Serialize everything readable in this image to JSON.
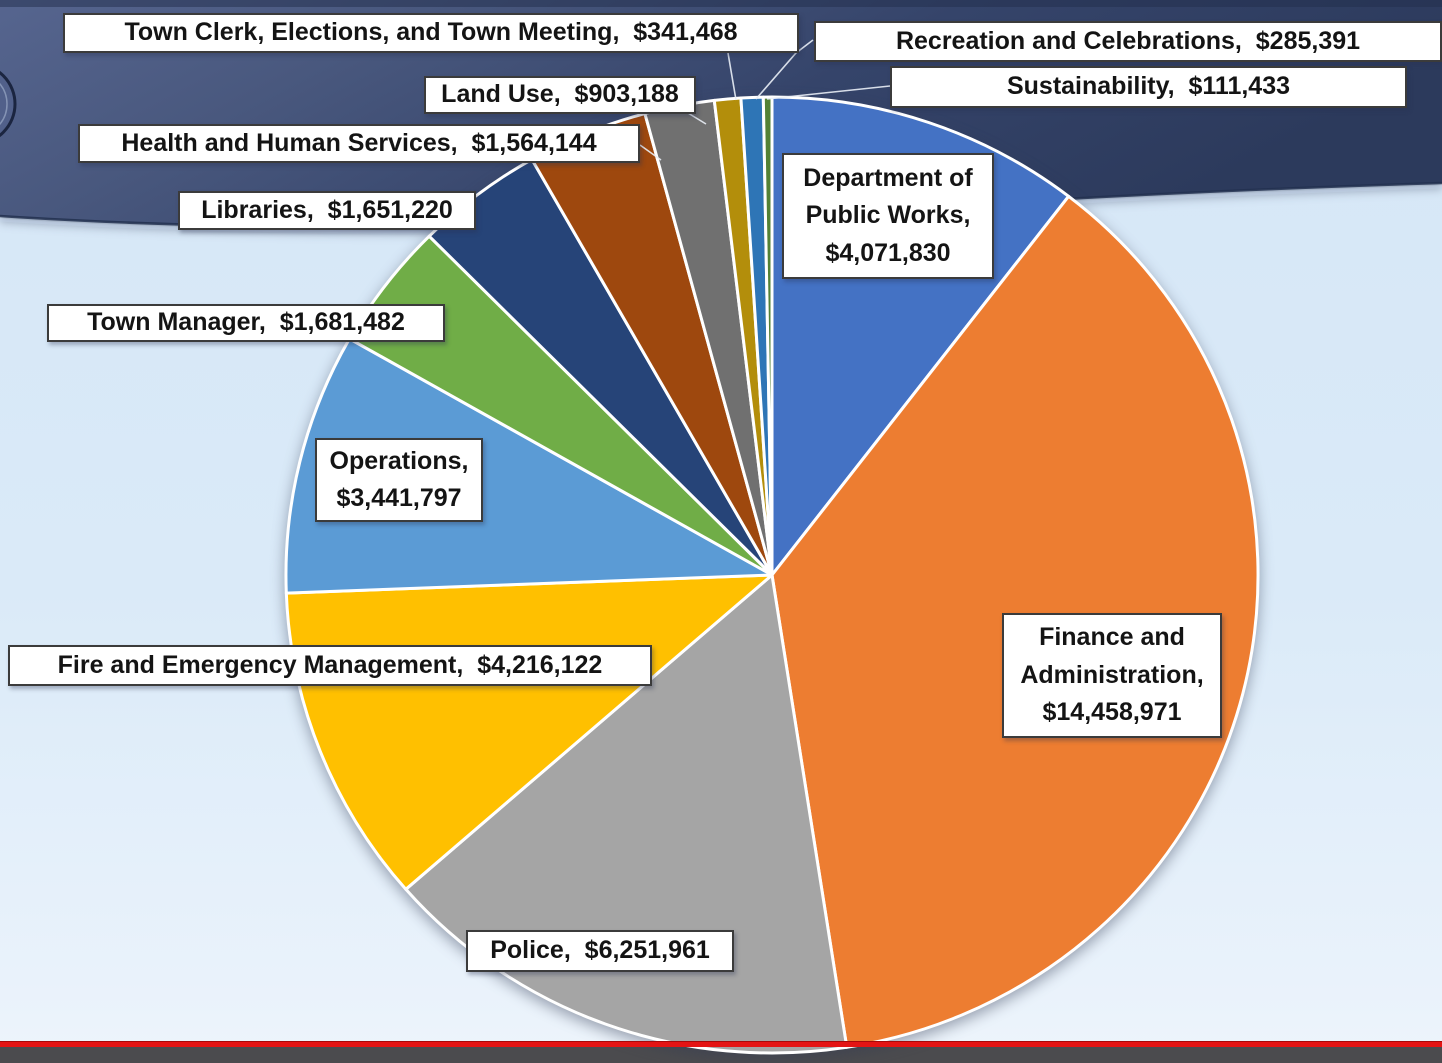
{
  "chart_data": {
    "type": "pie",
    "currency_symbol": "$",
    "direction": "clockwise",
    "start_angle_deg": 0,
    "legend_position": "none",
    "label_style": "callout-boxes",
    "slices": [
      {
        "id": "dpw",
        "name": "Department of Public Works",
        "value": 4071830,
        "display_value": "$4,071,830",
        "label": "Department of Public Works,  $4,071,830",
        "color": "#4472C4"
      },
      {
        "id": "finance",
        "name": "Finance and Administration",
        "value": 14458971,
        "display_value": "$14,458,971",
        "label": "Finance and Administration,  $14,458,971",
        "color": "#ED7D31"
      },
      {
        "id": "police",
        "name": "Police",
        "value": 6251961,
        "display_value": "$6,251,961",
        "label": "Police,  $6,251,961",
        "color": "#A5A5A5"
      },
      {
        "id": "fire",
        "name": "Fire and Emergency Management",
        "value": 4216122,
        "display_value": "$4,216,122",
        "label": "Fire and Emergency Management,  $4,216,122",
        "color": "#FFC000"
      },
      {
        "id": "operations",
        "name": "Operations",
        "value": 3441797,
        "display_value": "$3,441,797",
        "label": "Operations,  $3,441,797",
        "color": "#5B9BD5"
      },
      {
        "id": "town-manager",
        "name": "Town Manager",
        "value": 1681482,
        "display_value": "$1,681,482",
        "label": "Town Manager,  $1,681,482",
        "color": "#70AD47"
      },
      {
        "id": "libraries",
        "name": "Libraries",
        "value": 1651220,
        "display_value": "$1,651,220",
        "label": "Libraries,  $1,651,220",
        "color": "#264478"
      },
      {
        "id": "hhs",
        "name": "Health and Human Services",
        "value": 1564144,
        "display_value": "$1,564,144",
        "label": "Health and Human Services,  $1,564,144",
        "color": "#9E480E"
      },
      {
        "id": "land-use",
        "name": "Land Use",
        "value": 903188,
        "display_value": "$903,188",
        "label": "Land Use,  $903,188",
        "color": "#707070"
      },
      {
        "id": "town-clerk",
        "name": "Town Clerk, Elections, and Town Meeting",
        "value": 341468,
        "display_value": "$341,468",
        "label": "Town Clerk, Elections, and Town Meeting,  $341,468",
        "color": "#B38E0B"
      },
      {
        "id": "recreation",
        "name": "Recreation and Celebrations",
        "value": 285391,
        "display_value": "$285,391",
        "label": "Recreation and Celebrations,  $285,391",
        "color": "#2E75B6"
      },
      {
        "id": "sustainability",
        "name": "Sustainability",
        "value": 111433,
        "display_value": "$111,433",
        "label": "Sustainability,  $111,433",
        "color": "#538135"
      }
    ]
  },
  "colors": {
    "background_top": "#D5E6F6",
    "background_bottom": "#EDF4FB",
    "banner_gradient": [
      "#56658F",
      "#49587E",
      "#35446A",
      "#2C3A5C"
    ],
    "label_box_background": "#FFFFFF",
    "label_box_border": "#3B3B3B",
    "label_text": "#141414",
    "slice_gap_stroke": "#FFFFFF",
    "leader_line": "#E9EEF6",
    "video_progress_line": "#E41414",
    "video_bottom_strip": "#4B4B4E"
  }
}
